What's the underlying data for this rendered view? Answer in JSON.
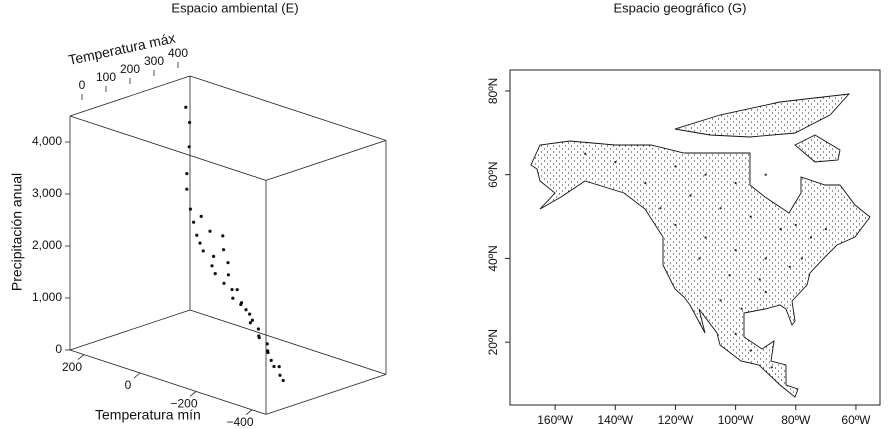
{
  "chart_data": [
    {
      "type": "scatter3d",
      "title": "Espacio ambiental (E)",
      "x_label": "Temperatura mín",
      "y_label": "Temperatura máx",
      "z_label": "Precipitación anual",
      "points": {
        "x": [
          120,
          100,
          90,
          80,
          60,
          50,
          40,
          20,
          0,
          -20,
          -40,
          -60,
          -80,
          -100,
          -120,
          -140,
          -160,
          -180,
          -200,
          -220,
          -240,
          -260,
          -280,
          -300,
          -320,
          -340,
          30,
          10,
          -50,
          -90,
          -130,
          -170,
          -210,
          -250,
          -290,
          150,
          150,
          140,
          145,
          150
        ],
        "y": [
          300,
          290,
          310,
          280,
          270,
          300,
          260,
          280,
          250,
          240,
          270,
          230,
          240,
          220,
          230,
          210,
          220,
          200,
          210,
          190,
          200,
          180,
          170,
          180,
          160,
          150,
          330,
          310,
          260,
          250,
          240,
          220,
          200,
          190,
          170,
          320,
          330,
          320,
          310,
          320
        ],
        "z": [
          2400,
          2200,
          2300,
          2000,
          1900,
          2100,
          1800,
          1700,
          1600,
          1500,
          1700,
          1400,
          1300,
          1200,
          1100,
          1200,
          1000,
          900,
          800,
          700,
          600,
          500,
          400,
          300,
          200,
          150,
          2000,
          1800,
          1500,
          1300,
          1000,
          900,
          700,
          500,
          300,
          3000,
          3500,
          4000,
          4300,
          2700
        ]
      },
      "color": "#111111",
      "xlim": [
        250,
        -450
      ],
      "ylim": [
        -50,
        450
      ],
      "zlim": [
        0,
        4500
      ],
      "xticks": [
        200,
        0,
        {
          "value": -200,
          "label": "−200"
        },
        {
          "value": -400,
          "label": "−400"
        }
      ],
      "yticks": [
        0,
        100,
        200,
        300,
        400
      ],
      "zticks": [
        0,
        {
          "value": 1000,
          "label": "1,000"
        },
        {
          "value": 2000,
          "label": "2,000"
        },
        {
          "value": 3000,
          "label": "3,000"
        },
        {
          "value": 4000,
          "label": "4,000"
        }
      ]
    },
    {
      "type": "map",
      "title": "Espacio geográfico (G)",
      "points": {
        "lon": [
          -150,
          -140,
          -120,
          -110,
          -100,
          -90,
          -80,
          -115,
          -105,
          -95,
          -85,
          -75,
          -120,
          -110,
          -100,
          -90,
          -82,
          -112,
          -102,
          -92,
          -78,
          -105,
          -98,
          -90,
          -100,
          -95,
          -88,
          -130,
          -125,
          -70
        ],
        "lat": [
          65,
          63,
          62,
          60,
          58,
          60,
          48,
          55,
          52,
          50,
          47,
          45,
          48,
          45,
          42,
          40,
          38,
          40,
          36,
          35,
          40,
          30,
          28,
          32,
          22,
          18,
          14,
          58,
          52,
          47
        ]
      },
      "color": "#222222",
      "xlim": [
        -175,
        -52
      ],
      "ylim": [
        5,
        85
      ],
      "xticks": [
        {
          "value": -160,
          "label": "160ºW"
        },
        {
          "value": -140,
          "label": "140ºW"
        },
        {
          "value": -120,
          "label": "120ºW"
        },
        {
          "value": -100,
          "label": "100ºW"
        },
        {
          "value": -80,
          "label": "80ºW"
        },
        {
          "value": -60,
          "label": "60ºW"
        }
      ],
      "yticks": [
        {
          "value": 20,
          "label": "20ºN"
        },
        {
          "value": 40,
          "label": "40ºN"
        },
        {
          "value": 60,
          "label": "60ºN"
        },
        {
          "value": 80,
          "label": "80ºN"
        }
      ]
    }
  ]
}
